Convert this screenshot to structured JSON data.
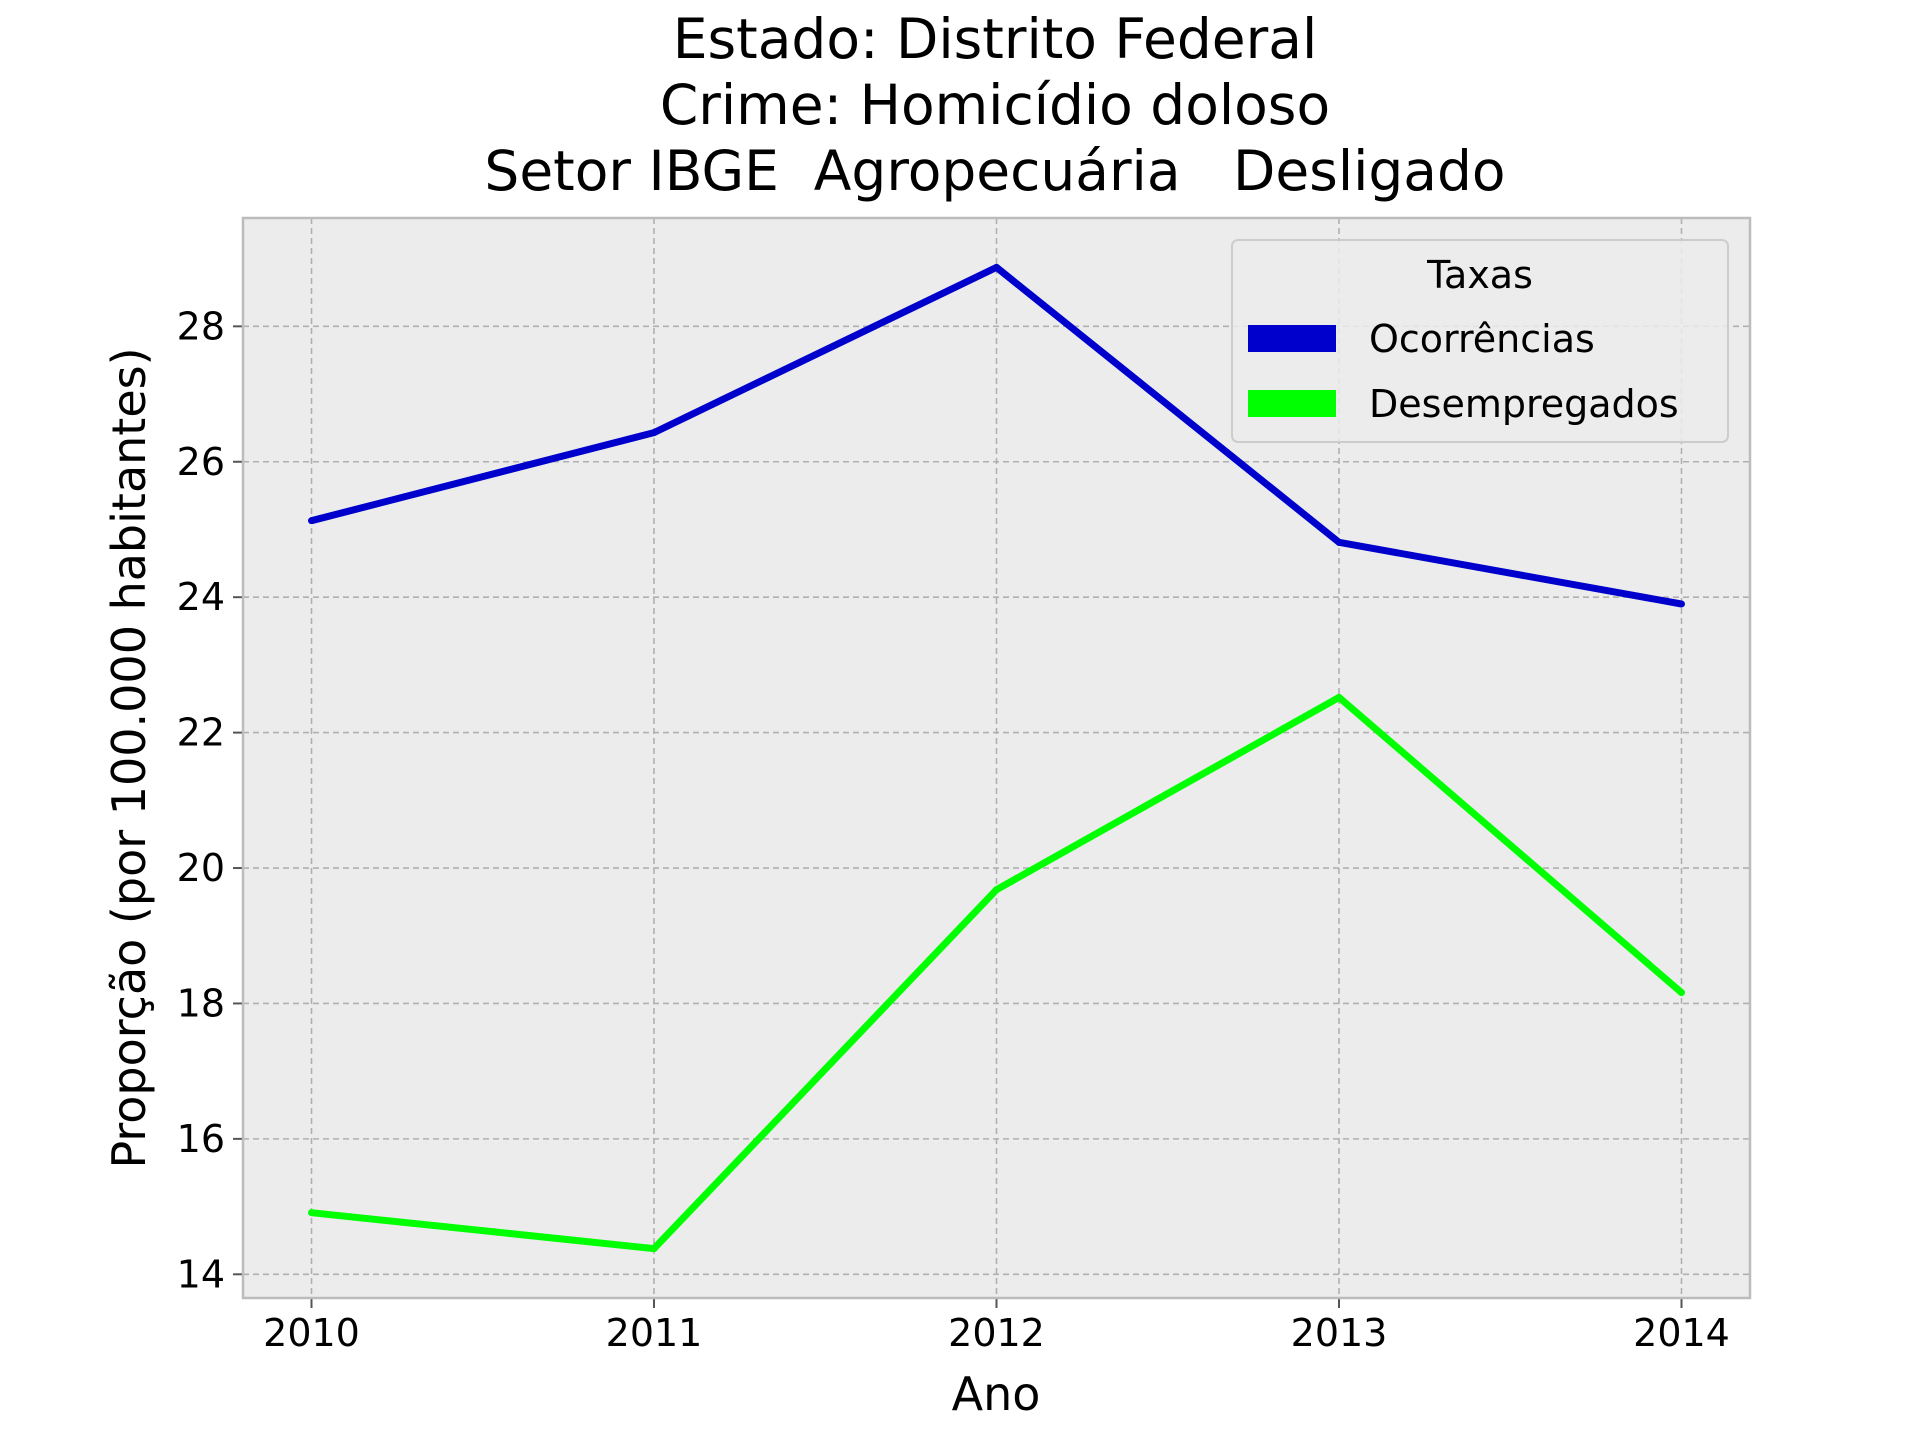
{
  "chart_data": {
    "type": "line",
    "title_lines": [
      "Estado: Distrito Federal",
      "Crime: Homicídio doloso",
      "Setor IBGE  Agropecuária   Desligado"
    ],
    "xlabel": "Ano",
    "ylabel": "Proporção (por 100.000 habitantes)",
    "x": [
      2010,
      2011,
      2012,
      2013,
      2014
    ],
    "x_tick_labels": [
      "2010",
      "2011",
      "2012",
      "2013",
      "2014"
    ],
    "xlim": [
      2009.8,
      2014.2
    ],
    "y_ticks": [
      14,
      16,
      18,
      20,
      22,
      24,
      26,
      28
    ],
    "y_tick_labels": [
      "14",
      "16",
      "18",
      "20",
      "22",
      "24",
      "26",
      "28"
    ],
    "ylim": [
      13.65,
      29.6
    ],
    "grid": true,
    "legend": {
      "title": "Taxas",
      "placement": "top-right"
    },
    "series": [
      {
        "name": "Ocorrências",
        "color": "#0000cc",
        "values": [
          25.13,
          26.43,
          28.87,
          24.81,
          23.9
        ]
      },
      {
        "name": "Desempregados",
        "color": "#00ff00",
        "values": [
          14.91,
          14.38,
          19.68,
          22.52,
          18.16
        ]
      }
    ]
  },
  "colors": {
    "plot_background": "#ececec",
    "grid": "#b0b0b0",
    "frame": "#bcbcbc"
  }
}
